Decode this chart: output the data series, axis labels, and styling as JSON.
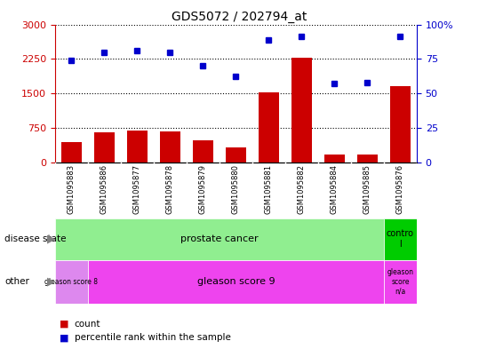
{
  "title": "GDS5072 / 202794_at",
  "samples": [
    "GSM1095883",
    "GSM1095886",
    "GSM1095877",
    "GSM1095878",
    "GSM1095879",
    "GSM1095880",
    "GSM1095881",
    "GSM1095882",
    "GSM1095884",
    "GSM1095885",
    "GSM1095876"
  ],
  "counts": [
    430,
    650,
    700,
    670,
    470,
    320,
    1520,
    2280,
    170,
    170,
    1650
  ],
  "percentiles": [
    74,
    80,
    81,
    80,
    70,
    62,
    89,
    91,
    57,
    58,
    91
  ],
  "left_ylim": [
    0,
    3000
  ],
  "right_ylim": [
    0,
    100
  ],
  "left_yticks": [
    0,
    750,
    1500,
    2250,
    3000
  ],
  "right_yticks": [
    0,
    25,
    50,
    75,
    100
  ],
  "right_yticklabels": [
    "0",
    "25",
    "50",
    "75",
    "100%"
  ],
  "bar_color": "#cc0000",
  "dot_color": "#0000cc",
  "pc_color": "#90ee90",
  "ctrl_color": "#00cc00",
  "gs8_color": "#dd88ee",
  "gs9_color": "#ee44ee",
  "gsna_color": "#ee44ee",
  "bg_gray": "#d3d3d3",
  "axis_left_color": "#cc0000",
  "axis_right_color": "#0000cc"
}
